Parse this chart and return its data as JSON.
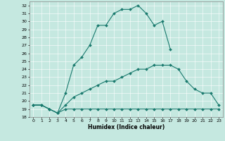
{
  "title": "",
  "xlabel": "Humidex (Indice chaleur)",
  "xlim_min": -0.5,
  "xlim_max": 23.5,
  "ylim_min": 18,
  "ylim_max": 32.5,
  "yticks": [
    18,
    19,
    20,
    21,
    22,
    23,
    24,
    25,
    26,
    27,
    28,
    29,
    30,
    31,
    32
  ],
  "xticks": [
    0,
    1,
    2,
    3,
    4,
    5,
    6,
    7,
    8,
    9,
    10,
    11,
    12,
    13,
    14,
    15,
    16,
    17,
    18,
    19,
    20,
    21,
    22,
    23
  ],
  "bg_color": "#c5e8e0",
  "grid_color": "#ffffff",
  "line_color": "#1a7a6e",
  "lines": [
    {
      "x": [
        0,
        1,
        2,
        3,
        4,
        5,
        6,
        7,
        8,
        9,
        10,
        11,
        12,
        13,
        14,
        15,
        16,
        17
      ],
      "y": [
        19.5,
        19.5,
        19.0,
        18.5,
        21.0,
        24.5,
        25.5,
        27.0,
        29.5,
        29.5,
        31.0,
        31.5,
        31.5,
        32.0,
        31.0,
        29.5,
        30.0,
        26.5
      ]
    },
    {
      "x": [
        0,
        1,
        2,
        3,
        4,
        5,
        6,
        7,
        8,
        9,
        10,
        11,
        12,
        13,
        14,
        15,
        16,
        17,
        18,
        19,
        20,
        21,
        22,
        23
      ],
      "y": [
        19.5,
        19.5,
        19.0,
        18.5,
        19.5,
        20.5,
        21.0,
        21.5,
        22.0,
        22.5,
        22.5,
        23.0,
        23.5,
        24.0,
        24.0,
        24.5,
        24.5,
        24.5,
        24.0,
        22.5,
        21.5,
        21.0,
        21.0,
        19.5
      ]
    },
    {
      "x": [
        0,
        1,
        2,
        3,
        4,
        5,
        6,
        7,
        8,
        9,
        10,
        11,
        12,
        13,
        14,
        15,
        16,
        17,
        18,
        19,
        20,
        21,
        22,
        23
      ],
      "y": [
        19.5,
        19.5,
        19.0,
        18.5,
        19.0,
        19.0,
        19.0,
        19.0,
        19.0,
        19.0,
        19.0,
        19.0,
        19.0,
        19.0,
        19.0,
        19.0,
        19.0,
        19.0,
        19.0,
        19.0,
        19.0,
        19.0,
        19.0,
        19.0
      ]
    }
  ]
}
